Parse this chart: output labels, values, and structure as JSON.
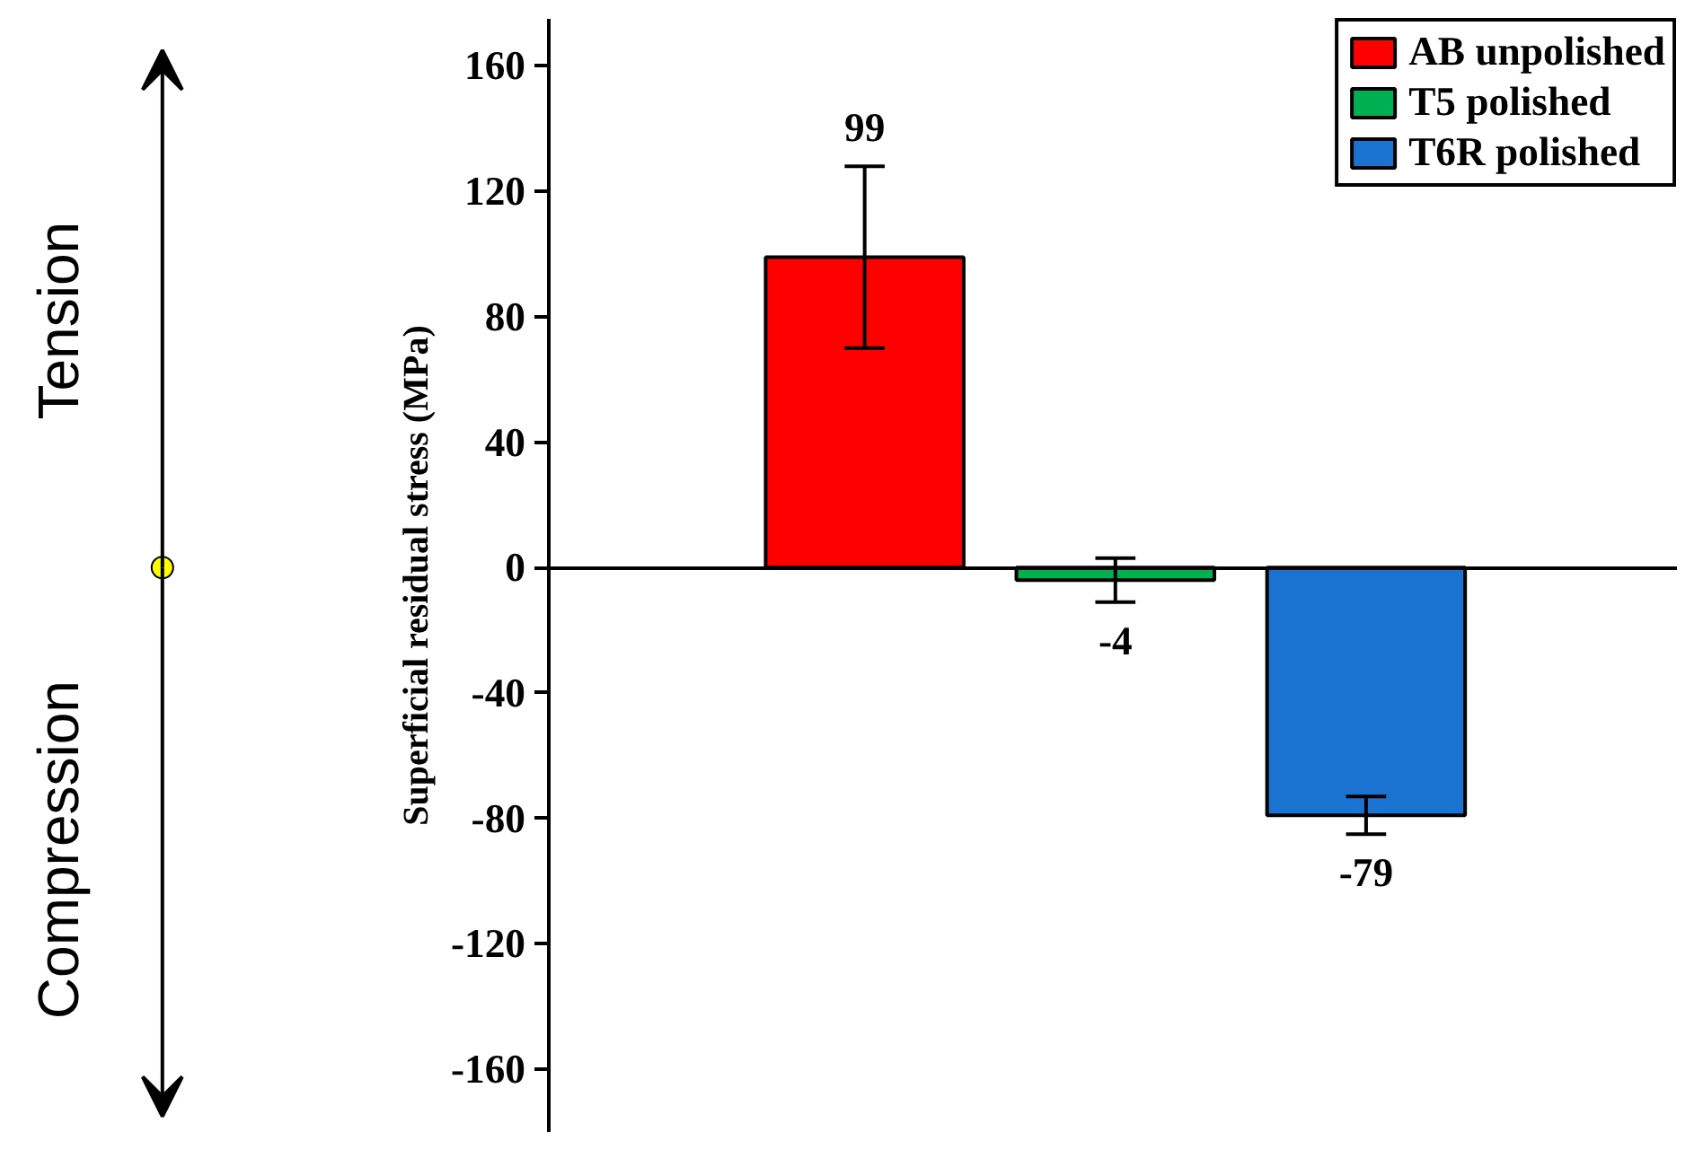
{
  "chart_data": {
    "type": "bar",
    "ylabel": "Superficial residual stress (MPa)",
    "categories": [
      null,
      null,
      null
    ],
    "series": [
      {
        "name": "AB unpolished",
        "color": "#ff0000",
        "values": [
          99,
          null,
          null
        ],
        "errors": [
          29,
          null,
          null
        ]
      },
      {
        "name": "T5 polished",
        "color": "#00b050",
        "values": [
          null,
          -4,
          null
        ],
        "errors": [
          null,
          7,
          null
        ]
      },
      {
        "name": "T6R polished",
        "color": "#1a73d0",
        "values": [
          null,
          null,
          -79
        ],
        "errors": [
          null,
          null,
          6
        ]
      }
    ],
    "ylim": [
      -180,
      175
    ],
    "yticks": [
      -160,
      -120,
      -80,
      -40,
      0,
      40,
      80,
      120,
      160
    ],
    "data_labels": true,
    "legend": "top right",
    "tick_labels": "y",
    "annotations": [
      "Tension",
      "Compression"
    ]
  }
}
